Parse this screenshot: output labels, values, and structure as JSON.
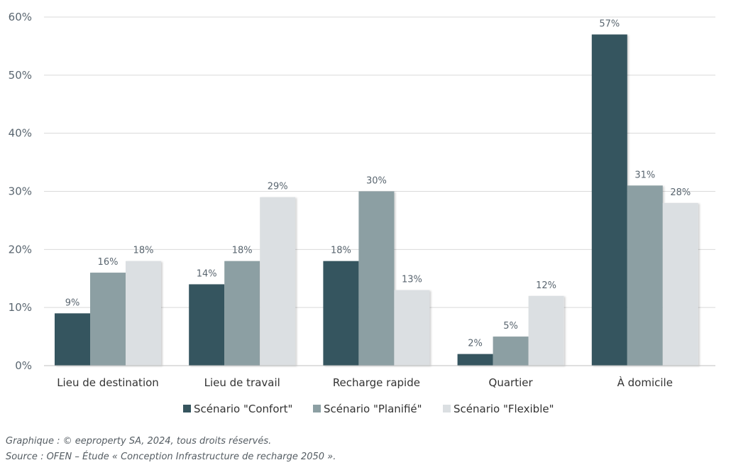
{
  "chart_data": {
    "type": "bar",
    "title": "",
    "xlabel": "",
    "ylabel": "",
    "ylim": [
      0,
      60
    ],
    "yticks": [
      0,
      10,
      20,
      30,
      40,
      50,
      60
    ],
    "ytick_labels": [
      "0%",
      "10%",
      "20%",
      "30%",
      "40%",
      "50%",
      "60%"
    ],
    "grid": "horizontal",
    "legend_position": "bottom-center",
    "categories": [
      "Lieu de destination",
      "Lieu de travail",
      "Recharge rapide",
      "Quartier",
      "À domicile"
    ],
    "series": [
      {
        "name": "Scénario \"Confort\"",
        "color": "#36555e",
        "values": [
          9,
          14,
          18,
          2,
          57
        ],
        "labels": [
          "9%",
          "14%",
          "18%",
          "2%",
          "57%"
        ]
      },
      {
        "name": "Scénario \"Planifié\"",
        "color": "#8c9fa3",
        "values": [
          16,
          18,
          30,
          5,
          31
        ],
        "labels": [
          "16%",
          "18%",
          "30%",
          "5%",
          "31%"
        ]
      },
      {
        "name": "Scénario \"Flexible\"",
        "color": "#dbdfe2",
        "values": [
          18,
          29,
          13,
          12,
          28
        ],
        "labels": [
          "18%",
          "29%",
          "13%",
          "12%",
          "28%"
        ]
      }
    ]
  },
  "footer": {
    "credit": "Graphique : © eeproperty SA, 2024, tous droits réservés.",
    "source": "Source : OFEN – Étude « Conception Infrastructure de recharge 2050 »."
  },
  "colors": {
    "grid": "#d9d9d9",
    "axis": "#bfbfbf"
  }
}
